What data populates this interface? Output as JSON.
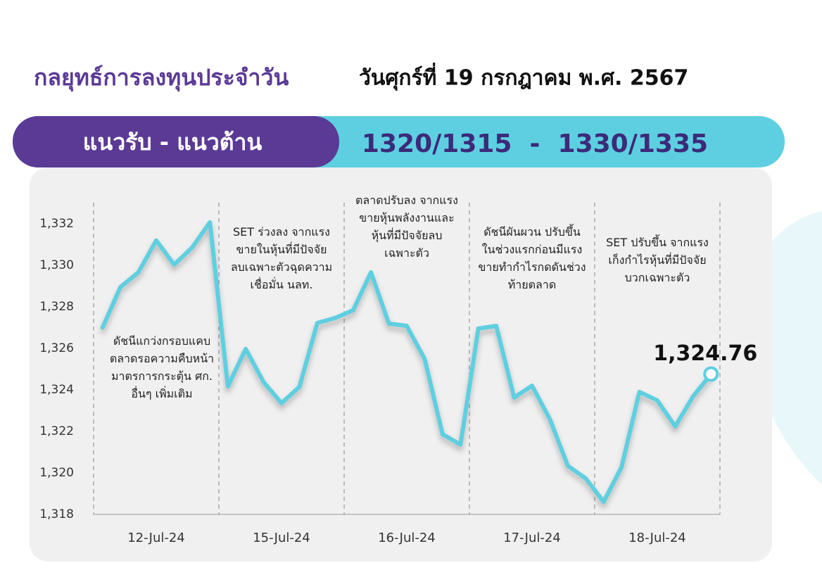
{
  "header": {
    "title": "กลยุทธ์การลงทุนประจำวัน",
    "date": "วันศุกร์ที่ 19 กรกฎาคม พ.ศ. 2567"
  },
  "banner": {
    "label": "แนวรับ - แนวต้าน",
    "levels": "1320/1315  -  1330/1335"
  },
  "chart_data": {
    "type": "line",
    "color": "#5ecfe0",
    "categories": [
      "12-Jul-24",
      "15-Jul-24",
      "16-Jul-24",
      "17-Jul-24",
      "18-Jul-24"
    ],
    "values": [
      [
        1327.0,
        1328.95,
        1329.66,
        1331.2,
        1330.03,
        1330.85,
        1332.07
      ],
      [
        1324.17,
        1325.97,
        1324.37,
        1323.36,
        1324.14,
        1327.22,
        1327.46
      ],
      [
        1327.83,
        1329.66,
        1327.19,
        1327.08,
        1325.49,
        1321.86,
        1321.36
      ],
      [
        1326.95,
        1327.08,
        1323.63,
        1324.2,
        1322.58,
        1320.34,
        1319.73
      ],
      [
        1318.61,
        1320.27,
        1323.9,
        1323.49,
        1322.24,
        1323.69,
        1324.76
      ]
    ],
    "last_label": "1,324.76",
    "annotations": [
      [
        "ดัชนีแกว่งกรอบแคบ",
        "ตลาดรอความคืบหน้า",
        "มาตรการกระตุ้น ศก.",
        "อื่นๆ เพิ่มเติม"
      ],
      [
        "SET ร่วงลง จากแรง",
        "ขายในหุ้นที่มีปัจจัย",
        "ลบเฉพาะตัวฉุดความ",
        "เชื่อมั่น นลท."
      ],
      [
        "ตลาดปรับลง จากแรง",
        "ขายหุ้นพลังงานและ",
        "หุ้นที่มีปัจจัยลบ",
        "เฉพาะตัว"
      ],
      [
        "ดัชนีผันผวน ปรับขึ้น",
        "ในช่วงแรกก่อนมีแรง",
        "ขายทำกำไรกดดันช่วง",
        "ท้ายตลาด"
      ],
      [
        "SET ปรับขึ้น จากแรง",
        "เก็งกำไรหุ้นที่มีปัจจัย",
        "บวกเฉพาะตัว"
      ]
    ],
    "ylim": [
      1318,
      1332
    ],
    "yticks": [
      {
        "value": 1318,
        "label": "1,318"
      },
      {
        "value": 1320,
        "label": "1,320"
      },
      {
        "value": 1322,
        "label": "1,322"
      },
      {
        "value": 1324,
        "label": "1,324"
      },
      {
        "value": 1326,
        "label": "1,326"
      },
      {
        "value": 1328,
        "label": "1,328"
      },
      {
        "value": 1330,
        "label": "1,330"
      },
      {
        "value": 1332,
        "label": "1,332"
      }
    ]
  }
}
